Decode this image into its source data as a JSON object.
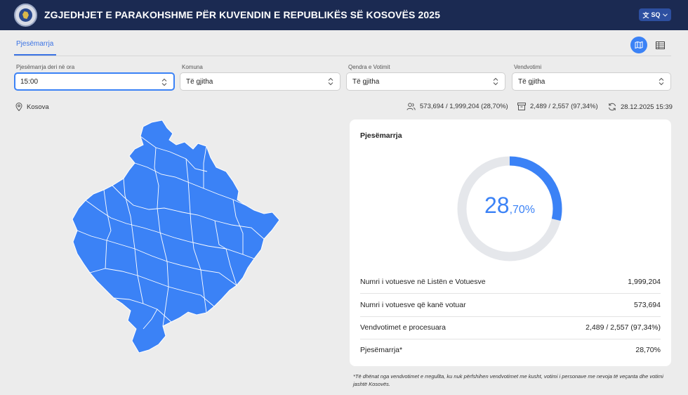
{
  "header": {
    "title": "ZGJEDHJET E PARAKOHSHME PËR KUVENDIN E REPUBLIKËS SË KOSOVËS 2025",
    "language": "SQ",
    "language_icon": "translate-icon",
    "background": "#1b2a52"
  },
  "tabs": [
    {
      "label": "Pjesëmarrja",
      "active": true
    }
  ],
  "view_toggle": {
    "active": "map",
    "options": [
      "map",
      "table"
    ]
  },
  "filters": {
    "time": {
      "label": "Pjesëmarrja deri në ora",
      "value": "15:00"
    },
    "municipality": {
      "label": "Komuna",
      "value": "Të gjitha"
    },
    "center": {
      "label": "Qendra e Votimit",
      "value": "Të gjitha"
    },
    "station": {
      "label": "Vendvotimi",
      "value": "Të gjitha"
    }
  },
  "location": {
    "name": "Kosova"
  },
  "summary": {
    "voters": "573,694 / 1,999,204 (28,70%)",
    "stations": "2,489 / 2,557 (97,34%)",
    "updated": "28.12.2025 15:39"
  },
  "turnout_card": {
    "title": "Pjesëmarrja",
    "percent_int": "28",
    "percent_dec": ",70%",
    "percent_value": 28.7,
    "accent": "#3b82f6",
    "track": "#e5e7eb",
    "rows": [
      {
        "label": "Numri i votuesve në Listën e Votuesve",
        "value": "1,999,204"
      },
      {
        "label": "Numri i votuesve që kanë votuar",
        "value": "573,694"
      },
      {
        "label": "Vendvotimet e procesuara",
        "value": "2,489 / 2,557 (97,34%)"
      },
      {
        "label": "Pjesëmarrja*",
        "value": "28,70%"
      }
    ]
  },
  "footnote": "*Të dhënat nga vendvotimet e rregullta, ku nuk përfshihen vendvotimet me kusht, votimi i personave me nevoja të veçanta dhe votimi jashtë Kosovës."
}
